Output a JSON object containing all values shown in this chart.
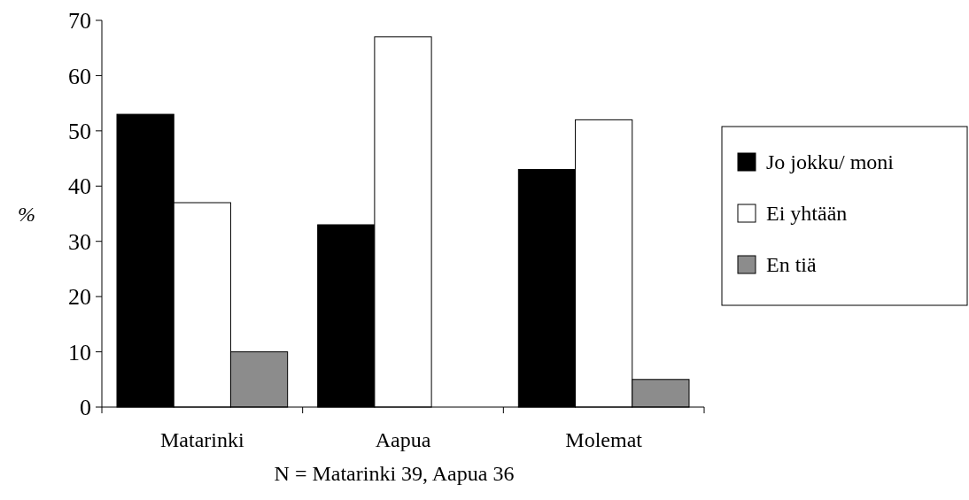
{
  "chart_data": {
    "type": "bar",
    "ylabel": "%",
    "categories": [
      "Matarinki",
      "Aapua",
      "Molemat"
    ],
    "series": [
      {
        "name": "Jo jokku/ moni",
        "color": "#000000",
        "values": [
          53,
          33,
          43
        ]
      },
      {
        "name": "Ei yhtään",
        "color": "#ffffff",
        "values": [
          37,
          67,
          52
        ]
      },
      {
        "name": "En tiä",
        "color": "#8c8c8c",
        "values": [
          10,
          0,
          5
        ]
      }
    ],
    "ylim": [
      0,
      70
    ],
    "yticks": [
      0,
      10,
      20,
      30,
      40,
      50,
      60,
      70
    ],
    "grid": false,
    "legend": "right",
    "annotations": [
      "N = Matarinki 39, Aapua 36"
    ]
  }
}
